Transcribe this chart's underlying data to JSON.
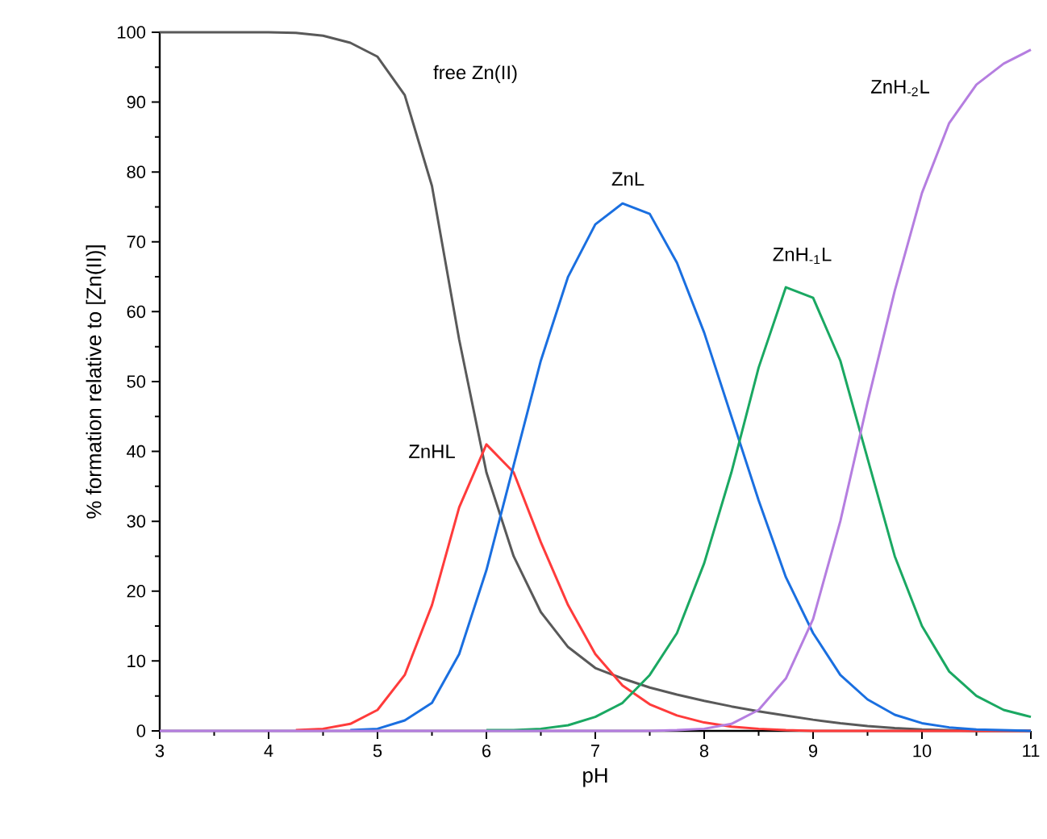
{
  "chart_data": {
    "type": "line",
    "xlabel": "pH",
    "ylabel": "% formation relative to [Zn(II)]",
    "x": [
      3,
      3.25,
      3.5,
      3.75,
      4,
      4.25,
      4.5,
      4.75,
      5,
      5.25,
      5.5,
      5.75,
      6,
      6.25,
      6.5,
      6.75,
      7,
      7.25,
      7.5,
      7.75,
      8,
      8.25,
      8.5,
      8.75,
      9,
      9.25,
      9.5,
      9.75,
      10,
      10.25,
      10.5,
      10.75,
      11
    ],
    "series": [
      {
        "name": "free Zn(II)",
        "color": "#595959",
        "values": [
          100,
          100,
          100,
          100,
          100,
          99.9,
          99.5,
          98.5,
          96.5,
          91,
          78,
          56,
          37,
          25,
          17,
          12,
          9,
          7.5,
          6.2,
          5.2,
          4.3,
          3.5,
          2.8,
          2.2,
          1.6,
          1.1,
          0.7,
          0.4,
          0.2,
          0.1,
          0,
          0,
          0
        ]
      },
      {
        "name": "ZnHL",
        "color": "#ff3b3b",
        "values": [
          null,
          null,
          null,
          null,
          null,
          0.1,
          0.3,
          1,
          3,
          8,
          18,
          32,
          41,
          37,
          27,
          18,
          11,
          6.5,
          3.8,
          2.2,
          1.2,
          0.6,
          0.3,
          0.1,
          0,
          0,
          0,
          0,
          0,
          0,
          0,
          0,
          0
        ]
      },
      {
        "name": "ZnL",
        "color": "#1a6fe0",
        "values": [
          null,
          null,
          null,
          null,
          null,
          null,
          null,
          0.1,
          0.3,
          1.5,
          4,
          11,
          23,
          38,
          53,
          65,
          72.5,
          75.5,
          74,
          67,
          57,
          45,
          33,
          22,
          14,
          8,
          4.5,
          2.3,
          1.1,
          0.5,
          0.2,
          0.1,
          0
        ]
      },
      {
        "name": "ZnH$_{-1}$L",
        "color": "#1aa862",
        "values": [
          null,
          null,
          null,
          null,
          null,
          null,
          null,
          null,
          null,
          null,
          null,
          null,
          0.1,
          0.1,
          0.3,
          0.8,
          2,
          4,
          8,
          14,
          24,
          37,
          52,
          63.5,
          62,
          53,
          39,
          25,
          15,
          8.5,
          5,
          3,
          2
        ]
      },
      {
        "name": "ZnH$_{-2}$L",
        "color": "#b57ee0",
        "values": [
          0,
          0,
          0,
          0,
          0,
          0,
          0,
          0,
          0,
          0,
          0,
          0,
          0,
          0,
          0,
          0,
          0,
          0,
          0,
          0.1,
          0.3,
          1,
          3,
          7.5,
          16,
          30,
          47,
          63,
          77,
          87,
          92.5,
          95.5,
          97.5
        ]
      }
    ],
    "xlim": [
      3,
      11
    ],
    "ylim": [
      0,
      100
    ],
    "xticks": [
      3,
      4,
      5,
      6,
      7,
      8,
      9,
      10,
      11
    ],
    "yticks": [
      0,
      10,
      20,
      30,
      40,
      50,
      60,
      70,
      80,
      90,
      100
    ],
    "grid": false
  }
}
